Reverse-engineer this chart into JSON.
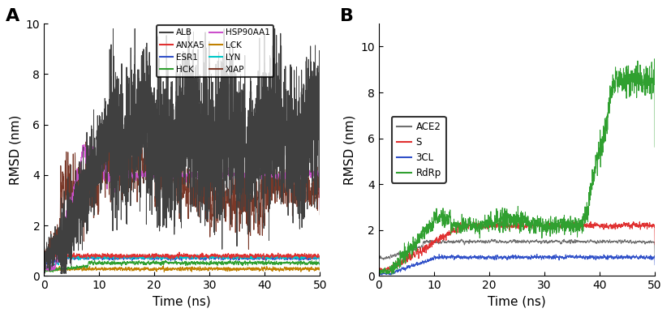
{
  "panel_A": {
    "title": "A",
    "xlabel": "Time (ns)",
    "ylabel": "RMSD (nm)",
    "xlim": [
      0,
      50
    ],
    "ylim": [
      0,
      10
    ],
    "yticks": [
      0,
      2,
      4,
      6,
      8,
      10
    ],
    "xticks": [
      0,
      10,
      20,
      30,
      40,
      50
    ],
    "series_order": [
      "ALB",
      "ANXA5",
      "ESR1",
      "HCK",
      "HSP90AA1",
      "LCK",
      "LYN",
      "XIAP"
    ],
    "series": {
      "ALB": {
        "color": "#404040",
        "lw": 0.7
      },
      "ANXA5": {
        "color": "#e03030",
        "lw": 0.7
      },
      "ESR1": {
        "color": "#3050c8",
        "lw": 0.7
      },
      "HCK": {
        "color": "#30a030",
        "lw": 0.7
      },
      "HSP90AA1": {
        "color": "#cc50cc",
        "lw": 0.7
      },
      "LCK": {
        "color": "#c08000",
        "lw": 0.7
      },
      "LYN": {
        "color": "#00c8c8",
        "lw": 0.7
      },
      "XIAP": {
        "color": "#7a3828",
        "lw": 0.7
      }
    }
  },
  "panel_B": {
    "title": "B",
    "xlabel": "Time (ns)",
    "ylabel": "RMSD (nm)",
    "xlim": [
      0,
      50
    ],
    "ylim": [
      0,
      11
    ],
    "yticks": [
      0,
      2,
      4,
      6,
      8,
      10
    ],
    "xticks": [
      0,
      10,
      20,
      30,
      40,
      50
    ],
    "series_order": [
      "ACE2",
      "S",
      "3CL",
      "RdRp"
    ],
    "series": {
      "ACE2": {
        "color": "#707070",
        "lw": 0.7
      },
      "S": {
        "color": "#e03030",
        "lw": 0.7
      },
      "3CL": {
        "color": "#3050c8",
        "lw": 0.7
      },
      "RdRp": {
        "color": "#30a030",
        "lw": 0.7
      }
    }
  }
}
